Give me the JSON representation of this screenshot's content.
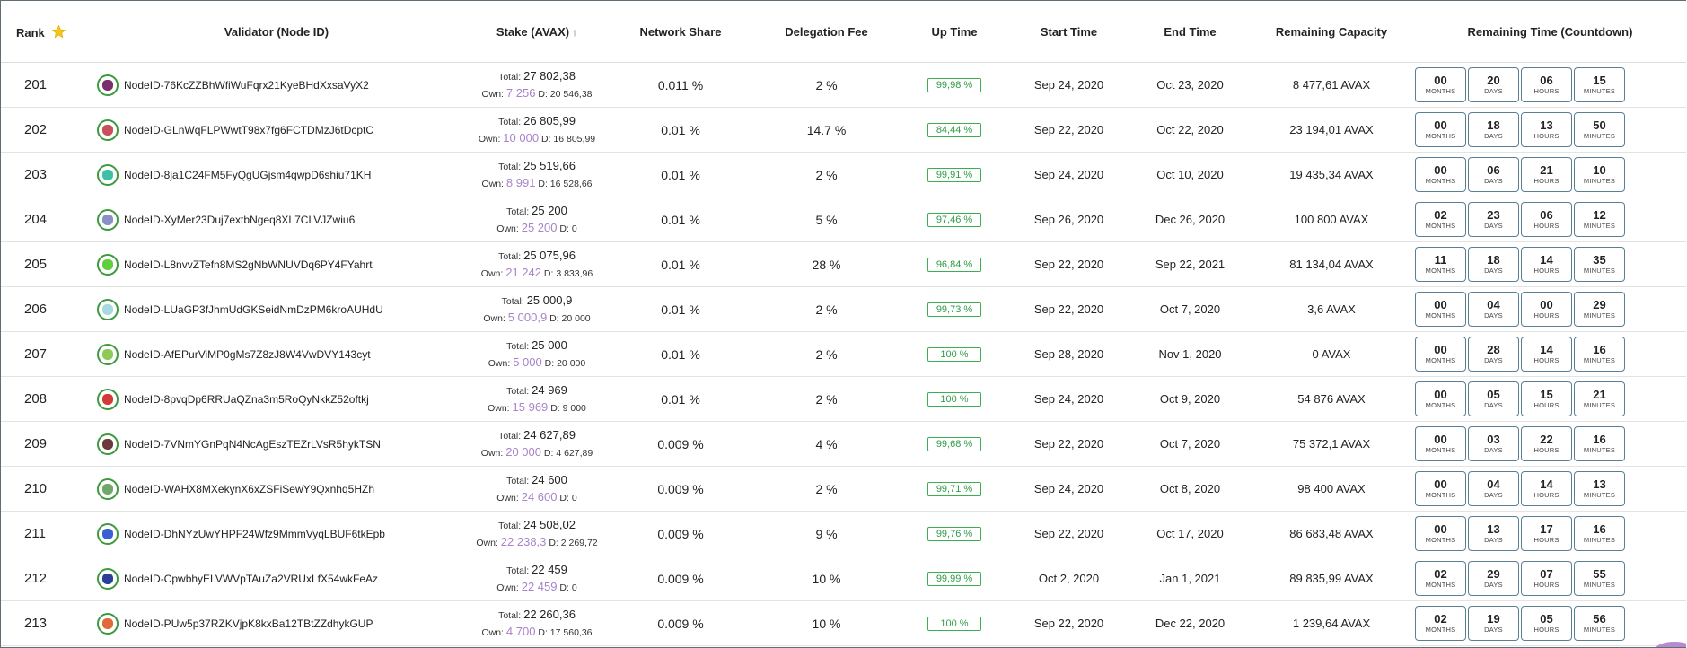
{
  "headers": {
    "rank": "Rank",
    "validator": "Validator (Node ID)",
    "stake": "Stake (AVAX)",
    "network_share": "Network Share",
    "delegation_fee": "Delegation Fee",
    "up_time": "Up Time",
    "start_time": "Start Time",
    "end_time": "End Time",
    "remaining_capacity": "Remaining Capacity",
    "remaining_time": "Remaining Time (Countdown)",
    "stake_sort_icon": "sort-ascending-arrow",
    "rank_icon": "star"
  },
  "labels": {
    "total": "Total:",
    "own": "Own:",
    "d": "D:",
    "months": "MONTHS",
    "days": "DAYS",
    "hours": "HOURS",
    "minutes": "MINUTES"
  },
  "colors": {
    "uptime_green": "#2f9c46",
    "own_purple": "#a883c9",
    "countdown_border": "#5a7f95"
  },
  "rows": [
    {
      "rank": "201",
      "node": "NodeID-76KcZZBhWfiWuFqrx21KyeBHdXxsaVyX2",
      "total": "27 802,38",
      "own": "7 256",
      "d": "20 546,38",
      "share": "0.011 %",
      "fee": "2 %",
      "uptime": "99,98 %",
      "start": "Sep 24, 2020",
      "end": "Oct 23, 2020",
      "capacity": "8 477,61 AVAX",
      "months": "00",
      "days": "20",
      "hours": "06",
      "minutes": "15",
      "avatar": "#7a2f6b"
    },
    {
      "rank": "202",
      "node": "NodeID-GLnWqFLPWwtT98x7fg6FCTDMzJ6tDcptC",
      "total": "26 805,99",
      "own": "10 000",
      "d": "16 805,99",
      "share": "0.01 %",
      "fee": "14.7 %",
      "uptime": "84,44 %",
      "start": "Sep 22, 2020",
      "end": "Oct 22, 2020",
      "capacity": "23 194,01 AVAX",
      "months": "00",
      "days": "18",
      "hours": "13",
      "minutes": "50",
      "avatar": "#c94f5c"
    },
    {
      "rank": "203",
      "node": "NodeID-8ja1C24FM5FyQgUGjsm4qwpD6shiu71KH",
      "total": "25 519,66",
      "own": "8 991",
      "d": "16 528,66",
      "share": "0.01 %",
      "fee": "2 %",
      "uptime": "99,91 %",
      "start": "Sep 24, 2020",
      "end": "Oct 10, 2020",
      "capacity": "19 435,34 AVAX",
      "months": "00",
      "days": "06",
      "hours": "21",
      "minutes": "10",
      "avatar": "#3fbfa7"
    },
    {
      "rank": "204",
      "node": "NodeID-XyMer23Duj7extbNgeq8XL7CLVJZwiu6",
      "total": "25 200",
      "own": "25 200",
      "d": "0",
      "share": "0.01 %",
      "fee": "5 %",
      "uptime": "97,46 %",
      "start": "Sep 26, 2020",
      "end": "Dec 26, 2020",
      "capacity": "100 800 AVAX",
      "months": "02",
      "days": "23",
      "hours": "06",
      "minutes": "12",
      "avatar": "#8a8fc4"
    },
    {
      "rank": "205",
      "node": "NodeID-L8nvvZTefn8MS2gNbWNUVDq6PY4FYahrt",
      "total": "25 075,96",
      "own": "21 242",
      "d": "3 833,96",
      "share": "0.01 %",
      "fee": "28 %",
      "uptime": "96,84 %",
      "start": "Sep 22, 2020",
      "end": "Sep 22, 2021",
      "capacity": "81 134,04 AVAX",
      "months": "11",
      "days": "18",
      "hours": "14",
      "minutes": "35",
      "avatar": "#5fcf3a"
    },
    {
      "rank": "206",
      "node": "NodeID-LUaGP3fJhmUdGKSeidNmDzPM6kroAUHdU",
      "total": "25 000,9",
      "own": "5 000,9",
      "d": "20 000",
      "share": "0.01 %",
      "fee": "2 %",
      "uptime": "99,73 %",
      "start": "Sep 22, 2020",
      "end": "Oct 7, 2020",
      "capacity": "3,6 AVAX",
      "months": "00",
      "days": "04",
      "hours": "00",
      "minutes": "29",
      "avatar": "#a8d8e0"
    },
    {
      "rank": "207",
      "node": "NodeID-AfEPurViMP0gMs7Z8zJ8W4VwDVY143cyt",
      "total": "25 000",
      "own": "5 000",
      "d": "20 000",
      "share": "0.01 %",
      "fee": "2 %",
      "uptime": "100 %",
      "start": "Sep 28, 2020",
      "end": "Nov 1, 2020",
      "capacity": "0 AVAX",
      "months": "00",
      "days": "28",
      "hours": "14",
      "minutes": "16",
      "avatar": "#8fc95a"
    },
    {
      "rank": "208",
      "node": "NodeID-8pvqDp6RRUaQZna3m5RoQyNkkZ52oftkj",
      "total": "24 969",
      "own": "15 969",
      "d": "9 000",
      "share": "0.01 %",
      "fee": "2 %",
      "uptime": "100 %",
      "start": "Sep 24, 2020",
      "end": "Oct 9, 2020",
      "capacity": "54 876 AVAX",
      "months": "00",
      "days": "05",
      "hours": "15",
      "minutes": "21",
      "avatar": "#d23a3a"
    },
    {
      "rank": "209",
      "node": "NodeID-7VNmYGnPqN4NcAgEszTEZrLVsR5hykTSN",
      "total": "24 627,89",
      "own": "20 000",
      "d": "4 627,89",
      "share": "0.009 %",
      "fee": "4 %",
      "uptime": "99,68 %",
      "start": "Sep 22, 2020",
      "end": "Oct 7, 2020",
      "capacity": "75 372,1 AVAX",
      "months": "00",
      "days": "03",
      "hours": "22",
      "minutes": "16",
      "avatar": "#6b3a3a"
    },
    {
      "rank": "210",
      "node": "NodeID-WAHX8MXekynX6xZSFiSewY9Qxnhq5HZh",
      "total": "24 600",
      "own": "24 600",
      "d": "0",
      "share": "0.009 %",
      "fee": "2 %",
      "uptime": "99,71 %",
      "start": "Sep 24, 2020",
      "end": "Oct 8, 2020",
      "capacity": "98 400 AVAX",
      "months": "00",
      "days": "04",
      "hours": "14",
      "minutes": "13",
      "avatar": "#6fa86a"
    },
    {
      "rank": "211",
      "node": "NodeID-DhNYzUwYHPF24Wfz9MmmVyqLBUF6tkEpb",
      "total": "24 508,02",
      "own": "22 238,3",
      "d": "2 269,72",
      "share": "0.009 %",
      "fee": "9 %",
      "uptime": "99,76 %",
      "start": "Sep 22, 2020",
      "end": "Oct 17, 2020",
      "capacity": "86 683,48 AVAX",
      "months": "00",
      "days": "13",
      "hours": "17",
      "minutes": "16",
      "avatar": "#3a5fd2"
    },
    {
      "rank": "212",
      "node": "NodeID-CpwbhyELVWVpTAuZa2VRUxLfX54wkFeAz",
      "total": "22 459",
      "own": "22 459",
      "d": "0",
      "share": "0.009 %",
      "fee": "10 %",
      "uptime": "99,99 %",
      "start": "Oct 2, 2020",
      "end": "Jan 1, 2021",
      "capacity": "89 835,99 AVAX",
      "months": "02",
      "days": "29",
      "hours": "07",
      "minutes": "55",
      "avatar": "#2a3f9a"
    },
    {
      "rank": "213",
      "node": "NodeID-PUw5p37RZKVjpK8kxBa12TBtZZdhykGUP",
      "total": "22 260,36",
      "own": "4 700",
      "d": "17 560,36",
      "share": "0.009 %",
      "fee": "10 %",
      "uptime": "100 %",
      "start": "Sep 22, 2020",
      "end": "Dec 22, 2020",
      "capacity": "1 239,64 AVAX",
      "months": "02",
      "days": "19",
      "hours": "05",
      "minutes": "56",
      "avatar": "#e06a3a"
    }
  ]
}
